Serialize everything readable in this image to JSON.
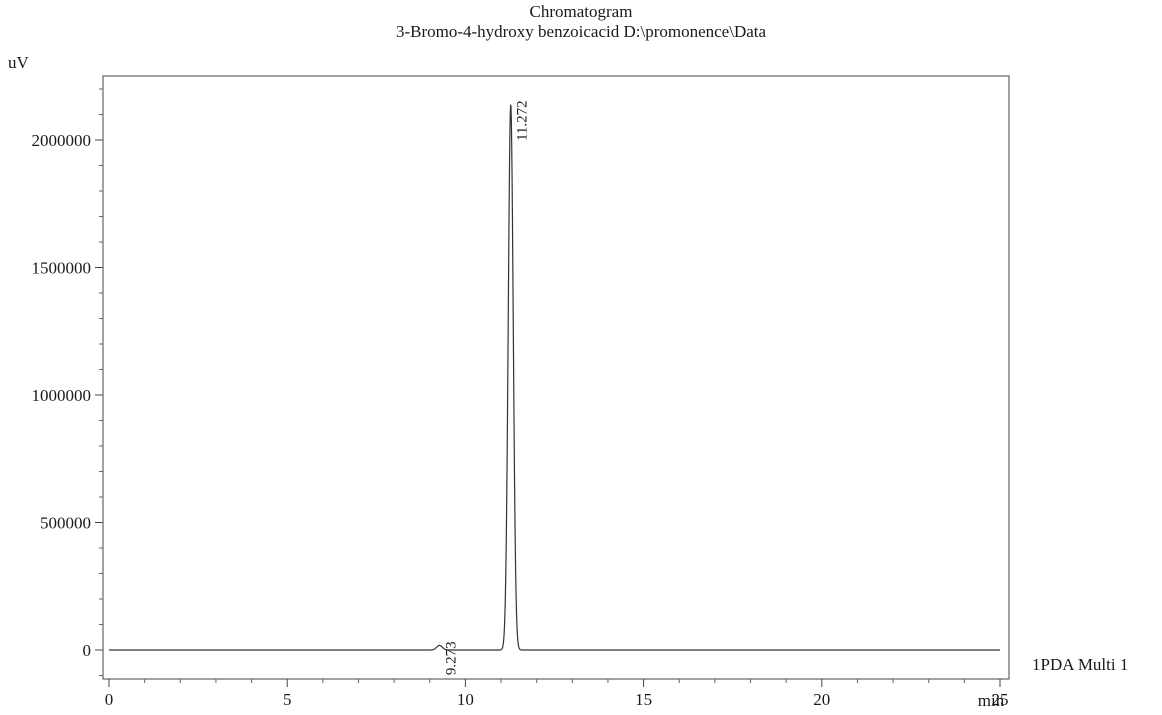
{
  "chart_data": {
    "type": "line",
    "title": "Chromatogram",
    "subtitle": "3-Bromo-4-hydroxy benzoicacid D:\\promonence\\Data",
    "ylabel": "uV",
    "xlabel": "min",
    "xlim": [
      0,
      25
    ],
    "ylim": [
      -130000,
      2270000
    ],
    "x_ticks": [
      0,
      5,
      10,
      15,
      20,
      25
    ],
    "x_tick_labels": [
      "0",
      "5",
      "10",
      "15",
      "20",
      "25"
    ],
    "y_ticks": [
      0,
      500000,
      1000000,
      1500000,
      2000000
    ],
    "y_tick_labels": [
      "0",
      "500000",
      "1000000",
      "1500000",
      "2000000"
    ],
    "grid": false,
    "series": [
      {
        "name": "1PDA Multi 1",
        "color": "#333333",
        "peaks": [
          {
            "rt": 9.273,
            "height": 18000,
            "sigma": 0.08
          },
          {
            "rt": 11.272,
            "height": 2140000,
            "sigma": 0.07
          }
        ]
      }
    ],
    "peak_labels": [
      {
        "text": "9.273",
        "x": 9.273,
        "y": 18000
      },
      {
        "text": "11.272",
        "x": 11.272,
        "y": 2140000
      }
    ]
  }
}
